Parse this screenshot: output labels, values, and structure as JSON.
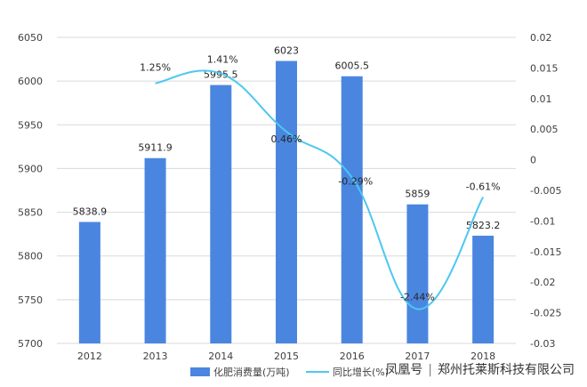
{
  "chart_data": {
    "type": "bar",
    "categories": [
      "2012",
      "2013",
      "2014",
      "2015",
      "2016",
      "2017",
      "2018"
    ],
    "series": [
      {
        "name": "化肥消费量(万吨)",
        "type": "bar",
        "axis": "left",
        "values": [
          5838.9,
          5911.9,
          5995.5,
          6023,
          6005.5,
          5859,
          5823.2
        ],
        "labels": [
          "5838.9",
          "5911.9",
          "5995.5",
          "6023",
          "6005.5",
          "5859",
          "5823.2"
        ]
      },
      {
        "name": "同比增长(%)",
        "type": "line",
        "axis": "right",
        "values": [
          null,
          0.0125,
          0.0141,
          0.0046,
          -0.0029,
          -0.0244,
          -0.0061
        ],
        "labels": [
          "",
          "1.25%",
          "1.41%",
          "0.46%",
          "-0.29%",
          "-2.44%",
          "-0.61%"
        ]
      }
    ],
    "y_left": {
      "ylim": [
        5700,
        6050
      ],
      "ticks": [
        "5700",
        "5750",
        "5800",
        "5850",
        "5900",
        "5950",
        "6000",
        "6050"
      ]
    },
    "y_right": {
      "ylim": [
        -0.03,
        0.02
      ],
      "ticks": [
        "-0.03",
        "-0.025",
        "-0.02",
        "-0.015",
        "-0.01",
        "-0.005",
        "0",
        "0.005",
        "0.01",
        "0.015",
        "0.02"
      ]
    },
    "grid": true,
    "legend": "bottom",
    "colors": {
      "bar": "#4a86e0",
      "line": "#4dc8f0",
      "axis_text": "#404040"
    }
  },
  "source": {
    "brand": "凤凰号",
    "company": "郑州托莱斯科技有限公司"
  }
}
